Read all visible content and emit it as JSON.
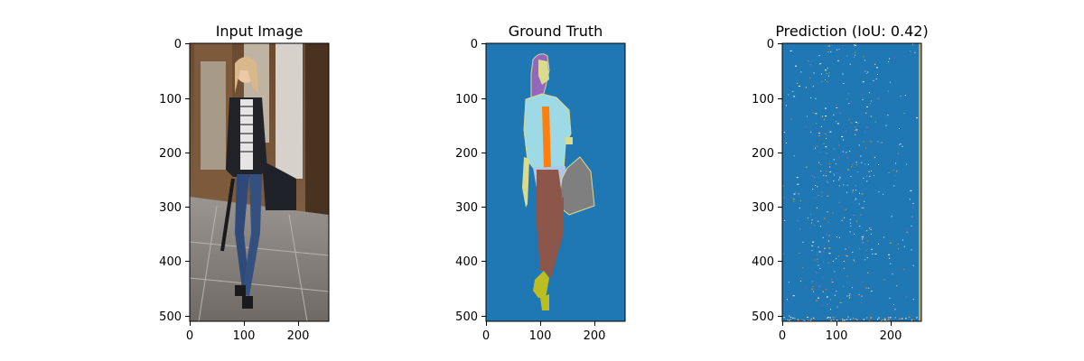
{
  "chart_data": [
    {
      "type": "image",
      "title": "Input Image",
      "xticks": [
        0,
        100,
        200
      ],
      "yticks": [
        0,
        100,
        200,
        300,
        400,
        500
      ],
      "xlim": [
        0,
        256
      ],
      "ylim": [
        512,
        0
      ]
    },
    {
      "type": "heatmap",
      "title": "Ground Truth",
      "xticks": [
        0,
        100,
        200
      ],
      "yticks": [
        0,
        100,
        200,
        300,
        400,
        500
      ],
      "xlim": [
        0,
        256
      ],
      "ylim": [
        512,
        0
      ],
      "background_color": "#1f77b4",
      "segment_colors": {
        "hair": "#9467bd",
        "upper_clothes": "#9edae5",
        "shirt": "#ff7f0e",
        "pants_legs": "#8c564b",
        "bag": "#7f7f7f",
        "shoes": "#bcbd22",
        "skin": "#dbdb8d",
        "belt_area": "#aec7e8"
      }
    },
    {
      "type": "heatmap",
      "title": "Prediction (IoU: 0.42)",
      "xticks": [
        0,
        100,
        200
      ],
      "yticks": [
        0,
        100,
        200,
        300,
        400,
        500
      ],
      "xlim": [
        0,
        256
      ],
      "ylim": [
        512,
        0
      ],
      "background_color": "#1f77b4",
      "iou": 0.42
    }
  ]
}
